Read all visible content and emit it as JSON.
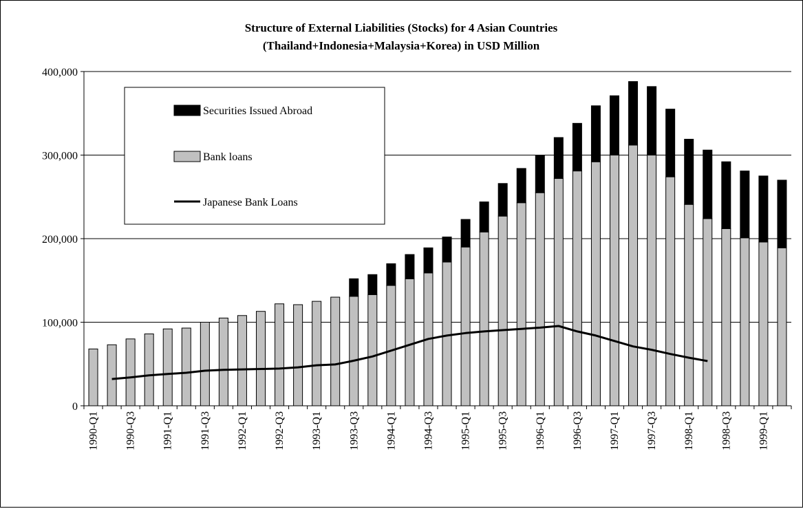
{
  "chart_data": {
    "type": "bar",
    "stacked": true,
    "title": "Structure of External Liabilities (Stocks) for 4 Asian Countries",
    "subtitle": "(Thailand+Indonesia+Malaysia+Korea) in USD Million",
    "xlabel": "",
    "ylabel": "",
    "ylim": [
      0,
      400000
    ],
    "y_ticks": [
      "0",
      "100,000",
      "200,000",
      "300,000",
      "400,000"
    ],
    "y_tick_values": [
      0,
      100000,
      200000,
      300000,
      400000
    ],
    "grid": true,
    "legend_position": "top-left",
    "categories": [
      "1990-Q1",
      "1990-Q2",
      "1990-Q3",
      "1990-Q4",
      "1991-Q1",
      "1991-Q2",
      "1991-Q3",
      "1991-Q4",
      "1992-Q1",
      "1992-Q2",
      "1992-Q3",
      "1992-Q4",
      "1993-Q1",
      "1993-Q2",
      "1993-Q3",
      "1993-Q4",
      "1994-Q1",
      "1994-Q2",
      "1994-Q3",
      "1994-Q4",
      "1995-Q1",
      "1995-Q2",
      "1995-Q3",
      "1995-Q4",
      "1996-Q1",
      "1996-Q2",
      "1996-Q3",
      "1996-Q4",
      "1997-Q1",
      "1997-Q2",
      "1997-Q3",
      "1997-Q4",
      "1998-Q1",
      "1998-Q2",
      "1998-Q3",
      "1998-Q4",
      "1999-Q1",
      "1999-Q2"
    ],
    "x_tick_labels": [
      "1990-Q1",
      "",
      "1990-Q3",
      "",
      "1991-Q1",
      "",
      "1991-Q3",
      "",
      "1992-Q1",
      "",
      "1992-Q3",
      "",
      "1993-Q1",
      "",
      "1993-Q3",
      "",
      "1994-Q1",
      "",
      "1994-Q3",
      "",
      "1995-Q1",
      "",
      "1995-Q3",
      "",
      "1996-Q1",
      "",
      "1996-Q3",
      "",
      "1997-Q1",
      "",
      "1997-Q3",
      "",
      "1998-Q1",
      "",
      "1998-Q3",
      "",
      "1999-Q1",
      ""
    ],
    "series": [
      {
        "name": "Bank loans",
        "kind": "bar",
        "color": "#c0c0c0",
        "values": [
          68000,
          73000,
          80000,
          86000,
          92000,
          93000,
          100000,
          105000,
          108000,
          113000,
          122000,
          121000,
          125000,
          130000,
          131000,
          133000,
          144000,
          152000,
          159000,
          172000,
          190000,
          208000,
          227000,
          243000,
          255000,
          272000,
          281000,
          292000,
          300000,
          312000,
          300000,
          274000,
          241000,
          224000,
          212000,
          201000,
          196000,
          189000
        ]
      },
      {
        "name": "Securities Issued Abroad",
        "kind": "bar",
        "color": "#000000",
        "values": [
          0,
          0,
          0,
          0,
          0,
          0,
          0,
          0,
          0,
          0,
          0,
          0,
          0,
          0,
          21000,
          24000,
          26000,
          29000,
          30000,
          30000,
          33000,
          36000,
          39000,
          41000,
          45000,
          49000,
          57000,
          67000,
          71000,
          76000,
          82000,
          81000,
          78000,
          82000,
          80000,
          80000,
          79000,
          81000
        ]
      },
      {
        "name": "Japanese Bank Loans",
        "kind": "line",
        "color": "#000000",
        "values": [
          null,
          32000,
          34000,
          36500,
          38000,
          39500,
          42000,
          43000,
          43500,
          44000,
          44500,
          46000,
          48500,
          49500,
          54000,
          59000,
          66000,
          73000,
          80000,
          84000,
          87000,
          89000,
          90500,
          92000,
          93500,
          95500,
          89000,
          84000,
          77500,
          71000,
          67000,
          62000,
          57500,
          53500,
          null,
          null,
          null,
          null
        ]
      }
    ]
  }
}
